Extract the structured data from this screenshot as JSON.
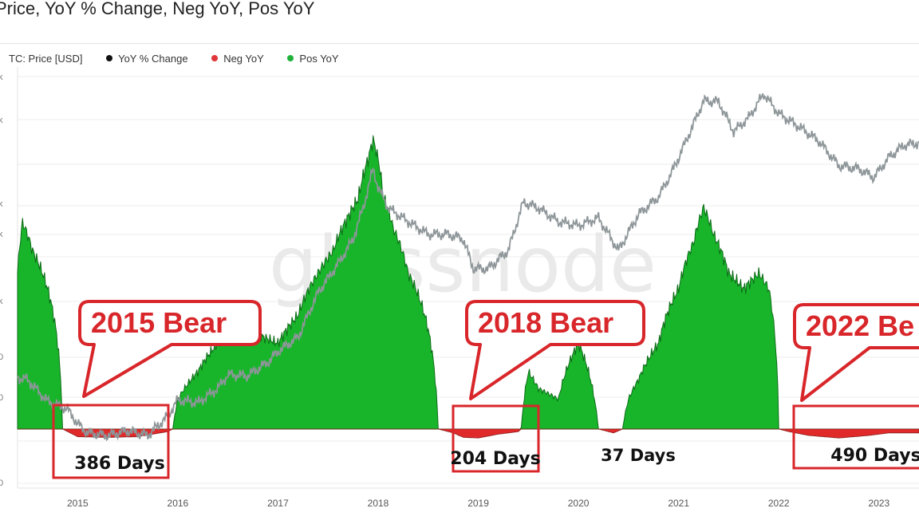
{
  "title": "Price, YoY % Change, Neg YoY, Pos YoY",
  "legend": [
    {
      "label": "TC: Price [USD]",
      "color": "#ffffff"
    },
    {
      "label": "YoY % Change",
      "color": "#111111"
    },
    {
      "label": "Neg YoY",
      "color": "#e0373a"
    },
    {
      "label": "Pos YoY",
      "color": "#21b13a"
    }
  ],
  "watermark": "glassnode",
  "colors": {
    "price": "#8e9699",
    "pos": "#18b52b",
    "neg": "#e02a2a",
    "callout": "#d8262a"
  },
  "chart_data": {
    "type": "area",
    "x_ticks": [
      "2015",
      "2016",
      "2017",
      "2018",
      "2019",
      "2020",
      "2021",
      "2022",
      "2023"
    ],
    "y_tick_labels": [
      "k",
      "k",
      "k",
      "k",
      "k",
      "0",
      "0",
      "0"
    ],
    "x_range": [
      2014.4,
      2023.4
    ],
    "series": [
      {
        "name": "Price",
        "x": [
          2014.4,
          2014.5,
          2014.7,
          2014.9,
          2015.0,
          2015.1,
          2015.3,
          2015.5,
          2015.7,
          2015.9,
          2016.0,
          2016.2,
          2016.4,
          2016.5,
          2016.7,
          2016.9,
          2017.0,
          2017.2,
          2017.4,
          2017.6,
          2017.75,
          2017.85,
          2017.95,
          2018.0,
          2018.1,
          2018.3,
          2018.5,
          2018.7,
          2018.85,
          2018.95,
          2019.1,
          2019.3,
          2019.45,
          2019.6,
          2019.8,
          2020.0,
          2020.2,
          2020.4,
          2020.6,
          2020.8,
          2020.95,
          2021.1,
          2021.25,
          2021.4,
          2021.55,
          2021.7,
          2021.85,
          2022.0,
          2022.2,
          2022.4,
          2022.6,
          2022.8,
          2022.95,
          2023.1,
          2023.25,
          2023.4
        ],
        "values": [
          620,
          600,
          420,
          370,
          290,
          250,
          240,
          260,
          240,
          330,
          430,
          410,
          520,
          650,
          640,
          800,
          950,
          1200,
          2500,
          4000,
          6000,
          10000,
          19000,
          14000,
          10000,
          8000,
          6500,
          6500,
          6000,
          3700,
          3700,
          5000,
          11000,
          10000,
          8000,
          7500,
          8500,
          5000,
          9000,
          12000,
          19000,
          33000,
          58000,
          57000,
          35000,
          44000,
          65000,
          47000,
          38000,
          30000,
          20000,
          19000,
          16500,
          23000,
          28000,
          29000
        ]
      },
      {
        "name": "YoY % Change",
        "x": [
          2014.4,
          2014.45,
          2014.55,
          2014.7,
          2014.85,
          2015.0,
          2015.3,
          2015.6,
          2015.9,
          2016.0,
          2016.2,
          2016.4,
          2016.6,
          2016.8,
          2017.0,
          2017.2,
          2017.4,
          2017.55,
          2017.7,
          2017.8,
          2017.9,
          2017.95,
          2018.0,
          2018.05,
          2018.15,
          2018.3,
          2018.45,
          2018.6,
          2018.75,
          2018.85,
          2019.0,
          2019.2,
          2019.4,
          2019.5,
          2019.6,
          2019.8,
          2020.0,
          2020.1,
          2020.2,
          2020.35,
          2020.5,
          2020.6,
          2020.8,
          2021.0,
          2021.15,
          2021.25,
          2021.35,
          2021.5,
          2021.65,
          2021.8,
          2021.9,
          2022.0,
          2022.1,
          2022.3,
          2022.6,
          2022.9,
          2023.1,
          2023.3,
          2023.4
        ],
        "values": [
          400,
          1000,
          600,
          300,
          0,
          -60,
          -65,
          -60,
          -20,
          20,
          50,
          100,
          150,
          120,
          100,
          180,
          400,
          600,
          1100,
          1500,
          3000,
          4200,
          3000,
          1600,
          900,
          400,
          200,
          0,
          -30,
          -65,
          -70,
          -40,
          -20,
          50,
          30,
          20,
          100,
          50,
          0,
          -30,
          20,
          40,
          100,
          300,
          700,
          1300,
          800,
          400,
          300,
          400,
          300,
          0,
          -20,
          -50,
          -70,
          -50,
          -30,
          -30,
          -30
        ]
      }
    ],
    "annotations": {
      "bears": [
        {
          "label": "2015 Bear",
          "days": "386 Days"
        },
        {
          "label": "2018 Bear",
          "days": "204 Days"
        },
        {
          "label": "2022 Be",
          "days": "490 Days"
        }
      ],
      "gap_label": "37 Days"
    }
  }
}
